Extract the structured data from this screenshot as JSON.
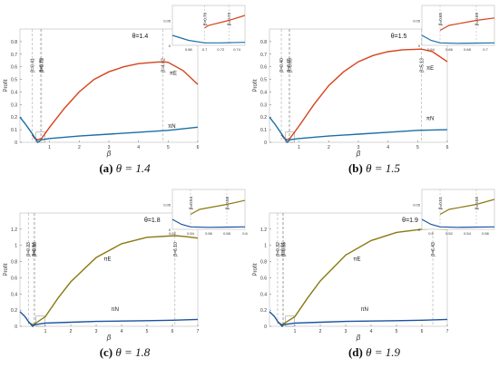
{
  "panels": [
    {
      "caption_letter": "(a)",
      "caption_text": "θ = 1.4",
      "chart_data": {
        "type": "line",
        "title": "θ=1.4",
        "xlabel": "β",
        "ylabel": "Profit",
        "xlim": [
          0,
          6
        ],
        "ylim": [
          0,
          0.9
        ],
        "xticks": [
          "1",
          "2",
          "3",
          "4",
          "5",
          "6"
        ],
        "yticks": [
          "0",
          "0.1",
          "0.2",
          "0.3",
          "0.4",
          "0.5",
          "0.6",
          "0.7",
          "0.8"
        ],
        "series": [
          {
            "name": "πE",
            "color": "#d7421c",
            "x": [
              0.41,
              0.5,
              0.6,
              0.73,
              1.0,
              1.5,
              2.0,
              2.5,
              3.0,
              3.5,
              4.0,
              4.5,
              4.82,
              5.0,
              5.5,
              6.0
            ],
            "y": [
              0.06,
              0.03,
              0.02,
              0.03,
              0.12,
              0.27,
              0.4,
              0.5,
              0.56,
              0.6,
              0.625,
              0.635,
              0.64,
              0.635,
              0.57,
              0.46
            ]
          },
          {
            "name": "πN",
            "color": "#1a6fa6",
            "x": [
              0,
              0.2,
              0.41,
              0.6,
              0.73,
              1.0,
              2.0,
              3.0,
              4.0,
              5.0,
              6.0
            ],
            "y": [
              0.2,
              0.14,
              0.07,
              0.0,
              0.02,
              0.03,
              0.05,
              0.065,
              0.08,
              0.095,
              0.12
            ]
          }
        ],
        "vlines": [
          {
            "x": 0.41,
            "label": "β=0.41"
          },
          {
            "x": 0.7,
            "label": "β=0.70"
          },
          {
            "x": 0.73,
            "label": "β=0.73"
          },
          {
            "x": 4.82,
            "label": "β=4.82"
          }
        ],
        "inset": {
          "xlim": [
            0.66,
            0.75
          ],
          "ylim": [
            0,
            0.08
          ],
          "xticks": [
            "0.68",
            "0.7",
            "0.72",
            "0.74"
          ],
          "yticks": [
            "0",
            "0.05"
          ],
          "vlines": [
            {
              "x": 0.7,
              "label": "β=0.70"
            },
            {
              "x": 0.73,
              "label": "β=0.73"
            }
          ],
          "series": [
            {
              "name": "πE",
              "color": "#d7421c",
              "x": [
                0.7,
                0.705,
                0.73,
                0.75
              ],
              "y": [
                0.035,
                0.04,
                0.05,
                0.06
              ]
            },
            {
              "name": "πN",
              "color": "#1a6fa6",
              "x": [
                0.66,
                0.68,
                0.7,
                0.72,
                0.75
              ],
              "y": [
                0.02,
                0.01,
                0.005,
                0.005,
                0.006
              ]
            }
          ]
        },
        "annotations": [
          {
            "text": "πE",
            "x": 5.05,
            "y": 0.58
          },
          {
            "text": "πN",
            "x": 5.0,
            "y": 0.16
          }
        ]
      }
    },
    {
      "caption_letter": "(b)",
      "caption_text": "θ = 1.5",
      "chart_data": {
        "type": "line",
        "title": "θ=1.5",
        "xlabel": "β",
        "ylabel": "Profit",
        "xlim": [
          0,
          6
        ],
        "ylim": [
          0,
          0.9
        ],
        "xticks": [
          "1",
          "2",
          "3",
          "4",
          "5",
          "6"
        ],
        "yticks": [
          "0",
          "0.1",
          "0.2",
          "0.3",
          "0.4",
          "0.5",
          "0.6",
          "0.7",
          "0.8"
        ],
        "series": [
          {
            "name": "πE",
            "color": "#d7421c",
            "x": [
              0.4,
              0.5,
              0.6,
              0.69,
              1.0,
              1.5,
              2.0,
              2.5,
              3.0,
              3.5,
              4.0,
              4.5,
              5.13,
              5.5,
              6.0
            ],
            "y": [
              0.06,
              0.03,
              0.02,
              0.03,
              0.13,
              0.3,
              0.45,
              0.56,
              0.64,
              0.69,
              0.72,
              0.735,
              0.74,
              0.72,
              0.64
            ]
          },
          {
            "name": "πN",
            "color": "#1a6fa6",
            "x": [
              0,
              0.2,
              0.4,
              0.6,
              0.69,
              1.0,
              2.0,
              3.0,
              4.0,
              5.0,
              6.0
            ],
            "y": [
              0.2,
              0.14,
              0.07,
              0.0,
              0.02,
              0.03,
              0.05,
              0.065,
              0.08,
              0.095,
              0.1
            ]
          }
        ],
        "vlines": [
          {
            "x": 0.4,
            "label": "β=0.40"
          },
          {
            "x": 0.65,
            "label": "β=0.65"
          },
          {
            "x": 0.69,
            "label": "β=0.69"
          },
          {
            "x": 5.13,
            "label": "β=5.13"
          }
        ],
        "inset": {
          "xlim": [
            0.63,
            0.71
          ],
          "ylim": [
            0,
            0.08
          ],
          "xticks": [
            "0.64",
            "0.66",
            "0.68",
            "0.7"
          ],
          "yticks": [
            "0",
            "0.05"
          ],
          "vlines": [
            {
              "x": 0.65,
              "label": "β=0.65"
            },
            {
              "x": 0.69,
              "label": "β=0.69"
            }
          ],
          "series": [
            {
              "name": "πE",
              "color": "#d7421c",
              "x": [
                0.65,
                0.66,
                0.69,
                0.71
              ],
              "y": [
                0.03,
                0.04,
                0.05,
                0.055
              ]
            },
            {
              "name": "πN",
              "color": "#1a6fa6",
              "x": [
                0.63,
                0.64,
                0.65,
                0.67,
                0.71
              ],
              "y": [
                0.02,
                0.01,
                0.005,
                0.004,
                0.005
              ]
            }
          ]
        },
        "annotations": [
          {
            "text": "πE",
            "x": 5.3,
            "y": 0.62
          },
          {
            "text": "πN",
            "x": 5.3,
            "y": 0.22
          }
        ]
      }
    },
    {
      "caption_letter": "(c)",
      "caption_text": "θ = 1.8",
      "chart_data": {
        "type": "line",
        "title": "θ=1.8",
        "xlabel": "β",
        "ylabel": "Profit",
        "xlim": [
          0,
          7
        ],
        "ylim": [
          0,
          1.4
        ],
        "xticks": [
          "1",
          "2",
          "3",
          "4",
          "5",
          "6",
          "7"
        ],
        "yticks": [
          "0",
          "0.2",
          "0.4",
          "0.6",
          "0.8",
          "1",
          "1.2"
        ],
        "series": [
          {
            "name": "πE",
            "color": "#8a7a12",
            "x": [
              0.33,
              0.5,
              0.58,
              1.0,
              1.5,
              2.0,
              3.0,
              4.0,
              5.0,
              6.1,
              6.5,
              7.0
            ],
            "y": [
              0.05,
              0.02,
              0.03,
              0.12,
              0.35,
              0.55,
              0.85,
              1.02,
              1.1,
              1.12,
              1.11,
              1.09
            ]
          },
          {
            "name": "πN",
            "color": "#1a53a0",
            "x": [
              0,
              0.2,
              0.33,
              0.5,
              0.58,
              1.0,
              2.0,
              3.0,
              4.0,
              5.0,
              6.0,
              7.0
            ],
            "y": [
              0.18,
              0.12,
              0.06,
              0.0,
              0.02,
              0.04,
              0.05,
              0.06,
              0.065,
              0.07,
              0.075,
              0.085
            ]
          }
        ],
        "vlines": [
          {
            "x": 0.33,
            "label": "β=0.33"
          },
          {
            "x": 0.54,
            "label": "β=0.54"
          },
          {
            "x": 0.58,
            "label": "β=0.58"
          },
          {
            "x": 6.1,
            "label": "β=6.10"
          }
        ],
        "inset": {
          "xlim": [
            0.52,
            0.6
          ],
          "ylim": [
            0,
            0.08
          ],
          "xticks": [
            "0.52",
            "0.54",
            "0.56",
            "0.58",
            "0.6"
          ],
          "yticks": [
            "0",
            "0.05"
          ],
          "vlines": [
            {
              "x": 0.54,
              "label": "β=0.54"
            },
            {
              "x": 0.58,
              "label": "β=0.58"
            }
          ],
          "series": [
            {
              "name": "πE",
              "color": "#8a7a12",
              "x": [
                0.54,
                0.55,
                0.58,
                0.6
              ],
              "y": [
                0.03,
                0.04,
                0.05,
                0.058
              ]
            },
            {
              "name": "πN",
              "color": "#1a53a0",
              "x": [
                0.52,
                0.53,
                0.54,
                0.56,
                0.6
              ],
              "y": [
                0.02,
                0.01,
                0.005,
                0.004,
                0.005
              ]
            }
          ]
        },
        "annotations": [
          {
            "text": "πE",
            "x": 3.3,
            "y": 0.88
          },
          {
            "text": "πN",
            "x": 3.6,
            "y": 0.26
          }
        ]
      }
    },
    {
      "caption_letter": "(d)",
      "caption_text": "θ = 1.9",
      "chart_data": {
        "type": "line",
        "title": "θ=1.9",
        "xlabel": "β",
        "ylabel": "Profit",
        "xlim": [
          0,
          7
        ],
        "ylim": [
          0,
          1.4
        ],
        "xticks": [
          "1",
          "2",
          "3",
          "4",
          "5",
          "6",
          "7"
        ],
        "yticks": [
          "0",
          "0.2",
          "0.4",
          "0.6",
          "0.8",
          "1",
          "1.2"
        ],
        "series": [
          {
            "name": "πE",
            "color": "#8a7a12",
            "x": [
              0.32,
              0.5,
              0.55,
              1.0,
              1.5,
              2.0,
              3.0,
              4.0,
              5.0,
              6.0,
              6.43,
              7.0
            ],
            "y": [
              0.05,
              0.02,
              0.03,
              0.12,
              0.35,
              0.56,
              0.88,
              1.06,
              1.16,
              1.2,
              1.21,
              1.2
            ]
          },
          {
            "name": "πN",
            "color": "#1a53a0",
            "x": [
              0,
              0.2,
              0.32,
              0.5,
              0.55,
              1.0,
              2.0,
              3.0,
              4.0,
              5.0,
              6.0,
              7.0
            ],
            "y": [
              0.18,
              0.12,
              0.06,
              0.0,
              0.02,
              0.04,
              0.05,
              0.06,
              0.065,
              0.07,
              0.075,
              0.085
            ]
          }
        ],
        "vlines": [
          {
            "x": 0.32,
            "label": "β=0.32"
          },
          {
            "x": 0.51,
            "label": "β=0.51"
          },
          {
            "x": 0.55,
            "label": "β=0.55"
          },
          {
            "x": 6.43,
            "label": "β=6.43"
          }
        ],
        "inset": {
          "xlim": [
            0.49,
            0.57
          ],
          "ylim": [
            0,
            0.08
          ],
          "xticks": [
            "0.5",
            "0.52",
            "0.54",
            "0.56"
          ],
          "yticks": [
            "0",
            "0.05"
          ],
          "vlines": [
            {
              "x": 0.51,
              "label": "β=0.51"
            },
            {
              "x": 0.55,
              "label": "β=0.55"
            }
          ],
          "series": [
            {
              "name": "πE",
              "color": "#8a7a12",
              "x": [
                0.51,
                0.52,
                0.55,
                0.57
              ],
              "y": [
                0.03,
                0.04,
                0.05,
                0.06
              ]
            },
            {
              "name": "πN",
              "color": "#1a53a0",
              "x": [
                0.49,
                0.5,
                0.51,
                0.53,
                0.57
              ],
              "y": [
                0.02,
                0.01,
                0.005,
                0.004,
                0.005
              ]
            }
          ]
        },
        "annotations": [
          {
            "text": "πE",
            "x": 3.3,
            "y": 0.88
          },
          {
            "text": "πN",
            "x": 3.6,
            "y": 0.26
          }
        ]
      }
    }
  ]
}
